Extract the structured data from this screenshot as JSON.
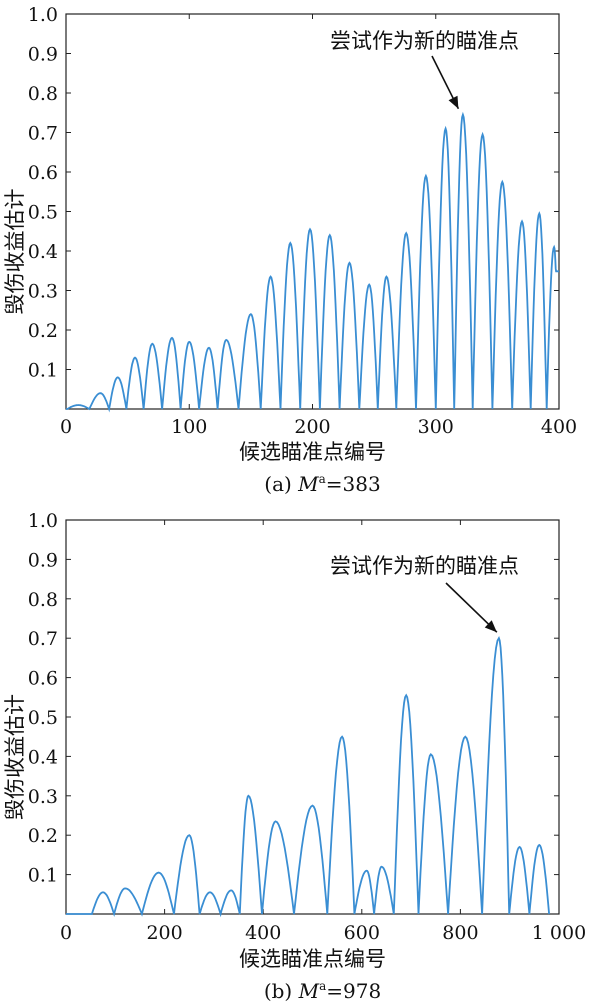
{
  "chart_data": [
    {
      "type": "line",
      "caption_prefix": "(a) ",
      "caption_var": "M",
      "caption_sup": "a",
      "caption_suffix": "=383",
      "xlabel": "候选瞄准点编号",
      "ylabel": "毁伤收益估计",
      "xlim": [
        0,
        400
      ],
      "ylim": [
        0,
        1.0
      ],
      "xticks": [
        "0",
        "100",
        "200",
        "300",
        "400"
      ],
      "yticks": [
        "0.1",
        "0.2",
        "0.3",
        "0.4",
        "0.5",
        "0.6",
        "0.7",
        "0.8",
        "0.9",
        "1.0"
      ],
      "annotation": {
        "text": "尝试作为新的瞄准点",
        "target_x": 320,
        "target_y": 0.745
      },
      "series": [
        {
          "peaks_x": [
            10,
            28,
            42,
            56,
            70,
            86,
            100,
            116,
            130,
            150,
            166,
            182,
            198,
            214,
            230,
            246,
            260,
            276,
            292,
            308,
            322,
            338,
            354,
            370,
            384,
            396
          ],
          "peaks_y": [
            0.01,
            0.04,
            0.08,
            0.13,
            0.165,
            0.18,
            0.17,
            0.155,
            0.175,
            0.24,
            0.335,
            0.42,
            0.455,
            0.44,
            0.37,
            0.315,
            0.335,
            0.445,
            0.59,
            0.71,
            0.745,
            0.695,
            0.575,
            0.475,
            0.495,
            0.41
          ]
        }
      ]
    },
    {
      "type": "line",
      "caption_prefix": "(b) ",
      "caption_var": "M",
      "caption_sup": "a",
      "caption_suffix": "=978",
      "xlabel": "候选瞄准点编号",
      "ylabel": "毁伤收益估计",
      "xlim": [
        0,
        1000
      ],
      "ylim": [
        0,
        1.0
      ],
      "xticks": [
        "0",
        "200",
        "400",
        "600",
        "800",
        "1 000"
      ],
      "yticks": [
        "0.1",
        "0.2",
        "0.3",
        "0.4",
        "0.5",
        "0.6",
        "0.7",
        "0.8",
        "0.9",
        "1.0"
      ],
      "annotation": {
        "text": "尝试作为新的瞄准点",
        "target_x": 878,
        "target_y": 0.7
      },
      "series": [
        {
          "peaks_x": [
            75,
            120,
            188,
            250,
            292,
            335,
            370,
            425,
            500,
            560,
            610,
            640,
            690,
            740,
            810,
            878,
            920,
            960
          ],
          "peaks_y": [
            0.055,
            0.065,
            0.105,
            0.2,
            0.055,
            0.06,
            0.3,
            0.235,
            0.275,
            0.45,
            0.11,
            0.12,
            0.555,
            0.405,
            0.45,
            0.7,
            0.17,
            0.175
          ]
        }
      ]
    }
  ]
}
